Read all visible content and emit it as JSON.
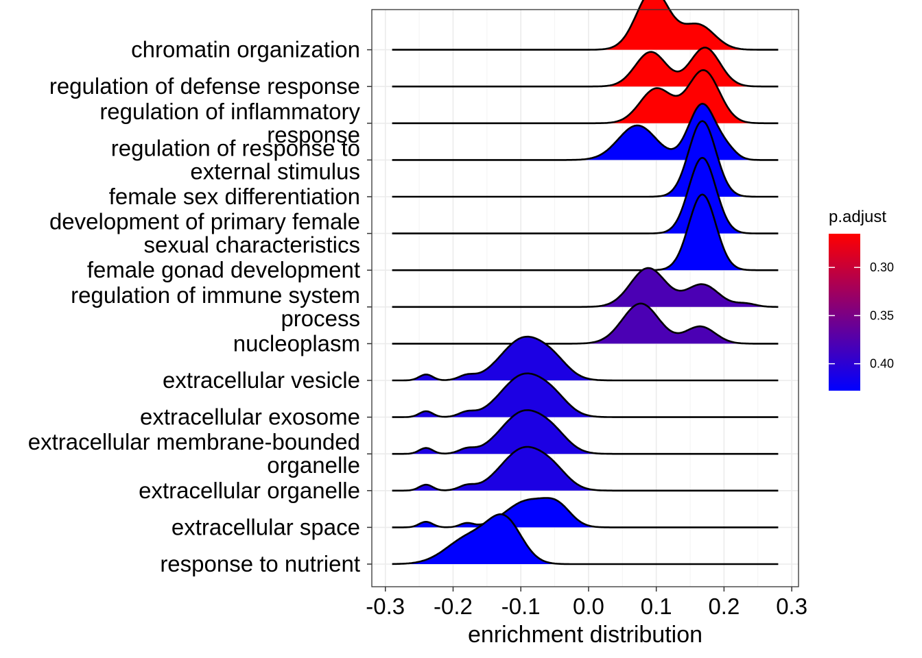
{
  "chart_data": {
    "type": "ridgeline",
    "xlabel": "enrichment distribution",
    "ylabel": "",
    "xlim": [
      -0.32,
      0.31
    ],
    "xticks": [
      "-0.3",
      "-0.2",
      "-0.1",
      "0.0",
      "0.1",
      "0.2",
      "0.3"
    ],
    "x_tick_values": [
      -0.3,
      -0.2,
      -0.1,
      0.0,
      0.1,
      0.2,
      0.3
    ],
    "grid": true,
    "density_x_range": [
      -0.29,
      0.28
    ],
    "legend": {
      "title": "p.adjust",
      "placement": "right",
      "ticks": [
        "0.30",
        "0.35",
        "0.40"
      ],
      "tick_values": [
        0.3,
        0.35,
        0.4
      ],
      "range": [
        0.265,
        0.428
      ],
      "low_color": "#FF0000",
      "high_color": "#0000FF"
    },
    "series": [
      {
        "label": "response to nutrient",
        "p_adjust": 0.428,
        "peaks": [
          [
            -0.175,
            0.034,
            0.82
          ],
          [
            -0.123,
            0.025,
            1.22
          ]
        ]
      },
      {
        "label": "extracellular space",
        "p_adjust": 0.428,
        "peaks": [
          [
            -0.24,
            0.01,
            0.17
          ],
          [
            -0.18,
            0.01,
            0.12
          ],
          [
            -0.09,
            0.032,
            0.8
          ],
          [
            -0.045,
            0.02,
            0.5
          ]
        ]
      },
      {
        "label": "extracellular organelle",
        "p_adjust": 0.41,
        "peaks": [
          [
            -0.24,
            0.01,
            0.18
          ],
          [
            -0.18,
            0.012,
            0.13
          ],
          [
            -0.095,
            0.034,
            1.28
          ],
          [
            -0.05,
            0.022,
            0.33
          ]
        ]
      },
      {
        "label": "extracellular membrane-bounded organelle",
        "p_adjust": 0.41,
        "peaks": [
          [
            -0.24,
            0.01,
            0.18
          ],
          [
            -0.18,
            0.012,
            0.13
          ],
          [
            -0.095,
            0.034,
            1.28
          ],
          [
            -0.05,
            0.022,
            0.33
          ]
        ]
      },
      {
        "label": "extracellular exosome",
        "p_adjust": 0.41,
        "peaks": [
          [
            -0.24,
            0.01,
            0.18
          ],
          [
            -0.18,
            0.012,
            0.13
          ],
          [
            -0.095,
            0.034,
            1.28
          ],
          [
            -0.05,
            0.022,
            0.33
          ]
        ]
      },
      {
        "label": "extracellular vesicle",
        "p_adjust": 0.41,
        "peaks": [
          [
            -0.24,
            0.01,
            0.18
          ],
          [
            -0.18,
            0.012,
            0.13
          ],
          [
            -0.095,
            0.034,
            1.28
          ],
          [
            -0.05,
            0.022,
            0.33
          ]
        ]
      },
      {
        "label": "nucleoplasm",
        "p_adjust": 0.38,
        "peaks": [
          [
            0.077,
            0.027,
            1.22
          ],
          [
            0.165,
            0.022,
            0.52
          ]
        ]
      },
      {
        "label": "regulation of immune system process",
        "p_adjust": 0.38,
        "peaks": [
          [
            0.088,
            0.026,
            1.18
          ],
          [
            0.168,
            0.024,
            0.68
          ],
          [
            0.232,
            0.015,
            0.1
          ]
        ]
      },
      {
        "label": "female gonad development",
        "p_adjust": 0.428,
        "peaks": [
          [
            0.168,
            0.02,
            2.3
          ]
        ]
      },
      {
        "label": "development of primary female sexual characteristics",
        "p_adjust": 0.428,
        "peaks": [
          [
            0.168,
            0.02,
            2.3
          ]
        ]
      },
      {
        "label": "female sex differentiation",
        "p_adjust": 0.428,
        "peaks": [
          [
            0.168,
            0.02,
            2.3
          ]
        ]
      },
      {
        "label": "regulation of response to external stimulus",
        "p_adjust": 0.428,
        "peaks": [
          [
            0.072,
            0.028,
            1.05
          ],
          [
            0.168,
            0.02,
            1.7
          ],
          [
            0.205,
            0.014,
            0.25
          ]
        ]
      },
      {
        "label": "regulation of inflammatory response",
        "p_adjust": 0.265,
        "peaks": [
          [
            0.1,
            0.024,
            1.05
          ],
          [
            0.17,
            0.023,
            1.6
          ]
        ]
      },
      {
        "label": "regulation of defense response",
        "p_adjust": 0.265,
        "peaks": [
          [
            0.092,
            0.023,
            1.05
          ],
          [
            0.172,
            0.022,
            1.18
          ]
        ]
      },
      {
        "label": "chromatin organization",
        "p_adjust": 0.265,
        "peaks": [
          [
            0.095,
            0.024,
            1.8
          ],
          [
            0.162,
            0.024,
            0.75
          ]
        ]
      }
    ]
  }
}
